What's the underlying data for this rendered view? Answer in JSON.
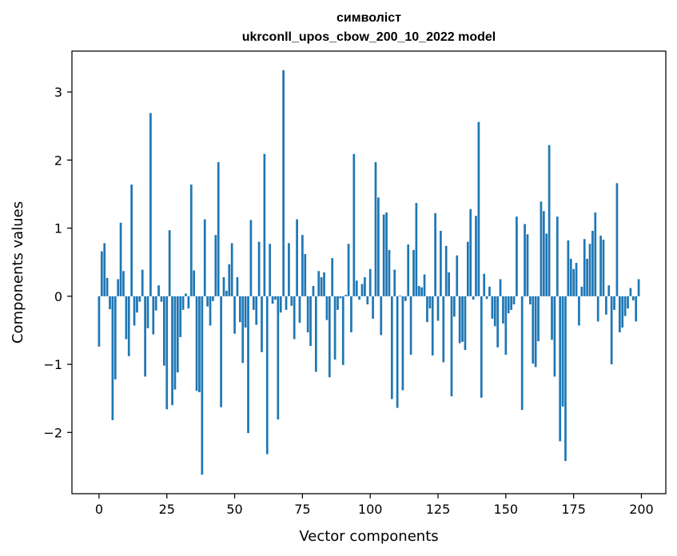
{
  "chart_data": {
    "type": "bar",
    "title_line1": "символіст",
    "title_line2": "ukrconll_upos_cbow_200_10_2022 model",
    "xlabel": "Vector components",
    "ylabel": "Components values",
    "xlim": [
      -10,
      209
    ],
    "ylim": [
      -2.9,
      3.6
    ],
    "xticks": [
      0,
      25,
      50,
      75,
      100,
      125,
      150,
      175,
      200
    ],
    "yticks": [
      -2,
      -1,
      0,
      1,
      2,
      3
    ],
    "ytick_labels": [
      "−2",
      "−1",
      "0",
      "1",
      "2",
      "3"
    ],
    "bar_color": "#1f77b4",
    "values": [
      -0.74,
      0.66,
      0.78,
      0.27,
      -0.19,
      -1.82,
      -1.22,
      0.25,
      1.08,
      0.37,
      -0.63,
      -0.88,
      1.64,
      -0.43,
      -0.24,
      -0.08,
      0.39,
      -1.18,
      -0.47,
      2.69,
      -0.56,
      -0.21,
      0.16,
      -0.08,
      -1.02,
      -1.66,
      0.97,
      -1.6,
      -1.37,
      -1.12,
      -0.6,
      -0.2,
      0.04,
      -0.18,
      1.64,
      0.38,
      -1.39,
      -1.41,
      -2.62,
      1.13,
      -0.15,
      -0.43,
      -0.07,
      0.9,
      1.97,
      -1.63,
      0.28,
      0.08,
      0.47,
      0.78,
      -0.55,
      0.28,
      -0.38,
      -0.98,
      -0.46,
      -2.01,
      1.12,
      -0.2,
      -0.42,
      0.8,
      -0.82,
      2.09,
      -2.32,
      0.77,
      -0.11,
      -0.05,
      -1.81,
      -0.24,
      3.32,
      -0.2,
      0.78,
      -0.14,
      -0.63,
      1.13,
      -0.39,
      0.9,
      0.62,
      -0.53,
      -0.73,
      0.15,
      -1.11,
      0.37,
      0.28,
      0.35,
      -0.35,
      -1.19,
      0.56,
      -0.93,
      -0.2,
      -0.03,
      -1.01,
      0.02,
      0.77,
      -0.53,
      2.09,
      0.23,
      -0.05,
      0.18,
      0.28,
      -0.12,
      0.4,
      -0.33,
      1.97,
      1.45,
      -0.57,
      1.2,
      1.23,
      0.68,
      -1.51,
      0.39,
      -1.64,
      0.01,
      -1.38,
      -0.07,
      0.76,
      -0.86,
      0.68,
      1.37,
      0.15,
      0.13,
      0.32,
      -0.38,
      -0.18,
      -0.87,
      1.22,
      -0.36,
      0.96,
      -0.97,
      0.74,
      0.35,
      -1.47,
      -0.3,
      0.6,
      -0.69,
      -0.67,
      -0.79,
      0.8,
      1.28,
      -0.05,
      1.18,
      2.56,
      -1.49,
      0.33,
      -0.04,
      0.14,
      -0.33,
      -0.44,
      -0.75,
      0.25,
      -0.4,
      -0.86,
      -0.25,
      -0.2,
      -0.12,
      1.17,
      0.0,
      -1.67,
      1.06,
      0.91,
      -0.12,
      -0.99,
      -1.04,
      -0.66,
      1.39,
      1.25,
      0.92,
      2.22,
      -0.64,
      -1.18,
      1.17,
      -2.13,
      -1.62,
      -2.42,
      0.82,
      0.55,
      0.4,
      0.49,
      -0.43,
      0.14,
      0.84,
      0.55,
      0.77,
      0.96,
      1.23,
      -0.37,
      0.89,
      0.83,
      -0.27,
      0.16,
      -1.0,
      -0.2,
      1.66,
      -0.53,
      -0.46,
      -0.29,
      -0.18,
      0.12,
      -0.06,
      -0.37,
      0.25
    ]
  }
}
